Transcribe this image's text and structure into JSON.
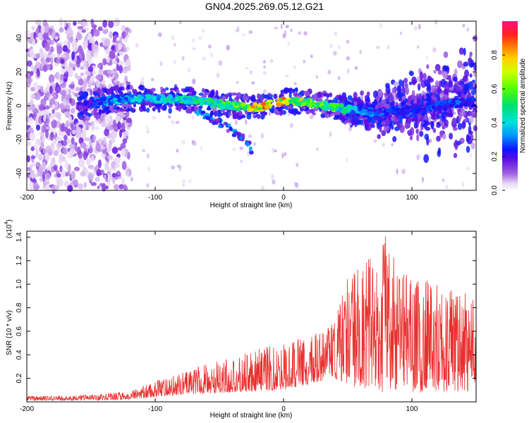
{
  "title": "GN04.2025.269.05.12.G21",
  "chart_data": [
    {
      "type": "heatmap",
      "name": "spectrogram",
      "xlabel": "Height of straight line (km)",
      "ylabel": "Frequency (Hz)",
      "xlim": [
        -200,
        150
      ],
      "ylim": [
        -50,
        50
      ],
      "xticks": [
        "-200",
        "-100",
        "0",
        "100"
      ],
      "xtick_values": [
        -200,
        -100,
        0,
        100
      ],
      "yticks": [
        "-40",
        "-20",
        "0",
        "20",
        "40"
      ],
      "ytick_values": [
        -40,
        -20,
        0,
        20,
        40
      ],
      "colorbar": {
        "label": "Normalized spectral amplitude",
        "range": [
          0,
          1
        ],
        "ticks": [
          "0.0",
          "0.2",
          "0.4",
          "0.6",
          "0.8"
        ],
        "tick_values": [
          0,
          0.2,
          0.4,
          0.6,
          0.8
        ]
      },
      "ridge": {
        "x": [
          -160,
          -140,
          -120,
          -100,
          -80,
          -60,
          -40,
          -20,
          0,
          20,
          40,
          60,
          80,
          100,
          120,
          140,
          150
        ],
        "freq": [
          0,
          3,
          4,
          4,
          4,
          2,
          0,
          -1,
          3,
          2,
          -1,
          -3,
          -4,
          -2,
          0,
          2,
          2
        ],
        "amplitude": [
          0.2,
          0.35,
          0.45,
          0.45,
          0.5,
          0.55,
          0.6,
          0.9,
          0.85,
          0.7,
          0.6,
          0.35,
          0.3,
          0.3,
          0.3,
          0.3,
          0.25
        ]
      },
      "branch": {
        "x": [
          -80,
          -60,
          -45,
          -30,
          -25
        ],
        "freq": [
          0,
          -6,
          -12,
          -20,
          -26
        ]
      },
      "noise_region_x": [
        -200,
        -120
      ]
    },
    {
      "type": "line",
      "name": "snr",
      "xlabel": "Height of straight line (km)",
      "ylabel": "SNR (10 * v/v)",
      "scale_label": "(x10",
      "scale_exp": "4",
      "scale_close": ")",
      "xlim": [
        -200,
        150
      ],
      "ylim": [
        0,
        14500
      ],
      "xticks": [
        "-200",
        "-100",
        "0",
        "100"
      ],
      "xtick_values": [
        -200,
        -100,
        0,
        100
      ],
      "yticks": [
        "0.2",
        "0.4",
        "0.6",
        "0.8",
        "1.0",
        "1.2",
        "1.4"
      ],
      "ytick_values": [
        2000,
        4000,
        6000,
        8000,
        10000,
        12000,
        14000
      ],
      "color": "#e8302e",
      "envelope": {
        "x": [
          -200,
          -150,
          -120,
          -100,
          -80,
          -60,
          -40,
          -20,
          0,
          20,
          30,
          40,
          50,
          60,
          70,
          80,
          90,
          100,
          110,
          120,
          130,
          140,
          150
        ],
        "upper": [
          500,
          600,
          900,
          1800,
          2500,
          3200,
          3800,
          4500,
          5000,
          5600,
          6000,
          6800,
          11000,
          11500,
          12500,
          14500,
          11500,
          11000,
          10500,
          10000,
          9500,
          9500,
          9500
        ],
        "lower": [
          100,
          150,
          200,
          400,
          600,
          700,
          800,
          900,
          1000,
          1500,
          1800,
          2000,
          1500,
          1000,
          800,
          800,
          800,
          800,
          800,
          800,
          800,
          800,
          1000
        ]
      }
    }
  ]
}
